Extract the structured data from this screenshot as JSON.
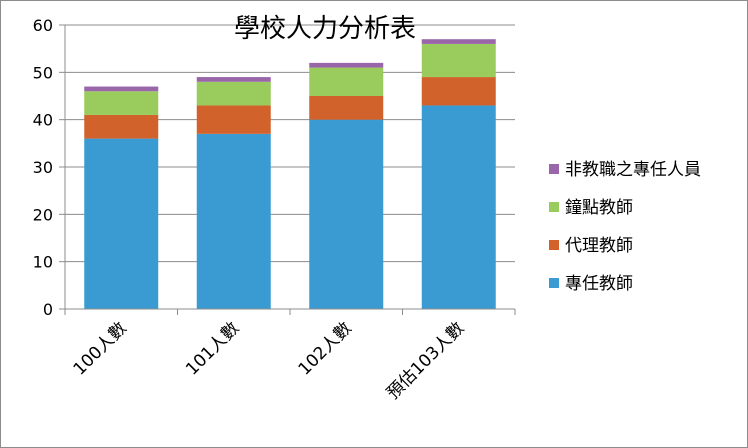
{
  "chart_data": {
    "type": "bar",
    "stacked": true,
    "title": "學校人力分析表",
    "categories": [
      "100人數",
      "101人數",
      "102人數",
      "預估103人數"
    ],
    "series": [
      {
        "name": "專任教師",
        "color": "#3a9bd2",
        "values": [
          36,
          37,
          40,
          43
        ]
      },
      {
        "name": "代理教師",
        "color": "#d2622c",
        "values": [
          5,
          6,
          5,
          6
        ]
      },
      {
        "name": "鐘點教師",
        "color": "#99cc5c",
        "values": [
          5,
          5,
          6,
          7
        ]
      },
      {
        "name": "非教職之專任人員",
        "color": "#9966aa",
        "values": [
          1,
          1,
          1,
          1
        ]
      }
    ],
    "ylim": [
      0,
      60
    ],
    "yticks": [
      0,
      10,
      20,
      30,
      40,
      50,
      60
    ],
    "grid": true,
    "legend_position": "right"
  }
}
